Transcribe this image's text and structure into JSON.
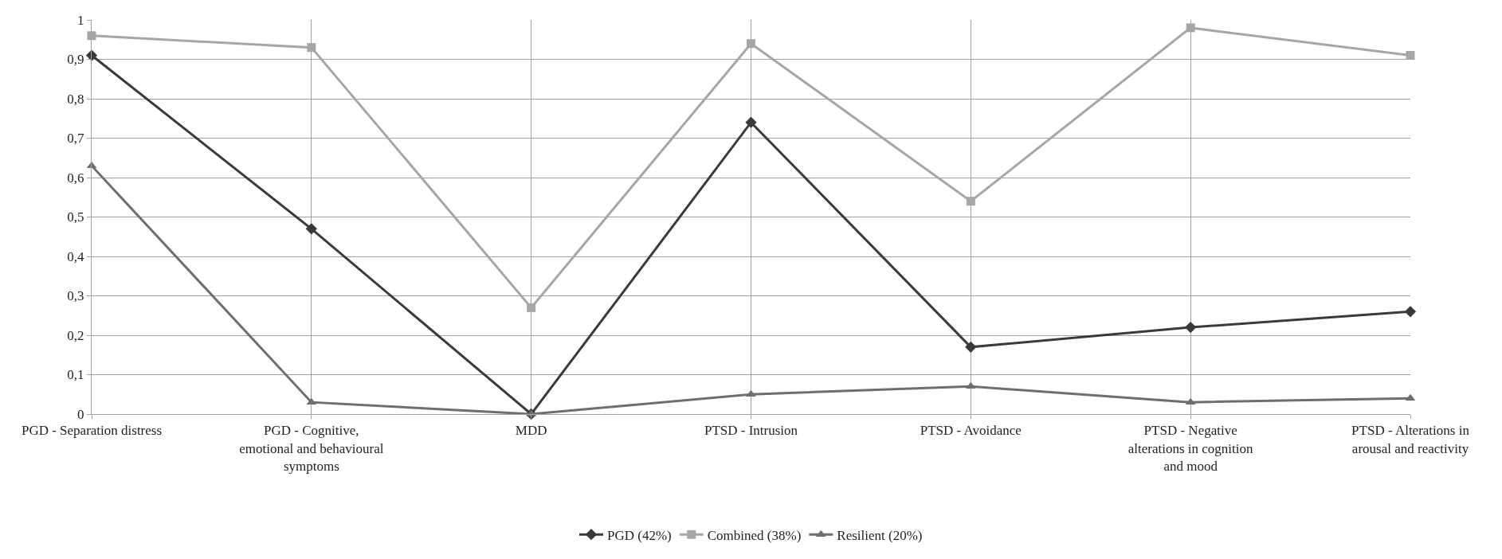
{
  "chart_data": {
    "type": "line",
    "categories": [
      "PGD - Separation distress",
      "PGD - Cognitive, emotional and behavioural symptoms",
      "MDD",
      "PTSD - Intrusion",
      "PTSD - Avoidance",
      "PTSD - Negative alterations in cognition and mood",
      "PTSD - Alterations in arousal and reactivity"
    ],
    "series": [
      {
        "name": "PGD (42%)",
        "color": "#3a3a3a",
        "marker": "diamond",
        "values": [
          0.91,
          0.47,
          0,
          0.74,
          0.17,
          0.22,
          0.26
        ]
      },
      {
        "name": "Combined (38%)",
        "color": "#a6a6a6",
        "marker": "square",
        "values": [
          0.96,
          0.93,
          0.27,
          0.94,
          0.54,
          0.98,
          0.91
        ]
      },
      {
        "name": "Resilient (20%)",
        "color": "#6e6e6e",
        "marker": "triangle",
        "values": [
          0.63,
          0.03,
          0,
          0.05,
          0.07,
          0.03,
          0.04
        ]
      }
    ],
    "ylim": [
      0,
      1
    ],
    "yticks": [
      0,
      {
        "value": 0.1,
        "label": "0,1"
      },
      {
        "value": 0.2,
        "label": "0,2"
      },
      {
        "value": 0.3,
        "label": "0,3"
      },
      {
        "value": 0.4,
        "label": "0,4"
      },
      {
        "value": 0.5,
        "label": "0,5"
      },
      {
        "value": 0.6,
        "label": "0,6"
      },
      {
        "value": 0.7,
        "label": "0,7"
      },
      {
        "value": 0.8,
        "label": "0,8"
      },
      {
        "value": 0.9,
        "label": "0,9"
      },
      1
    ],
    "grid": true,
    "legend": "bottom",
    "line_style": "solid"
  }
}
